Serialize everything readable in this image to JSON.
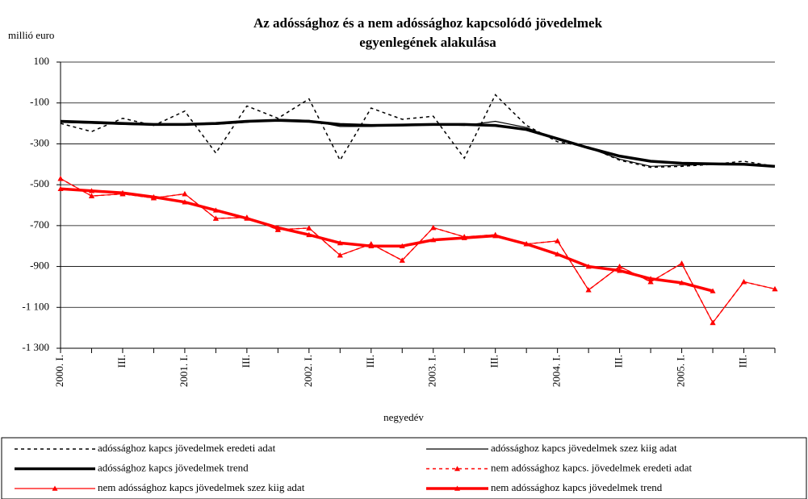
{
  "chart_data": {
    "type": "line",
    "title": [
      "Az adóssághoz  és a nem adóssághoz kapcsolódó jövedelmek",
      "egyenlegének alakulása"
    ],
    "y_label": "millió euro",
    "x_label": "negyedév",
    "categories": [
      "2000. I.",
      null,
      "III.",
      null,
      "2001. I.",
      null,
      "III.",
      null,
      "2002. I.",
      null,
      "III.",
      null,
      "2003. I.",
      null,
      "III.",
      null,
      "2004. I.",
      null,
      "III.",
      null,
      "2005. I.",
      null,
      "III.",
      null
    ],
    "ylim": [
      -1300,
      100
    ],
    "yticks": [
      100,
      -100,
      -300,
      -500,
      -700,
      -900,
      {
        "value": -1100,
        "label": "-1 100"
      },
      {
        "value": -1300,
        "label": "-1 300"
      }
    ],
    "grid": true,
    "legend": "bottom",
    "series": [
      {
        "name": "adóssághoz kapcs jövedelmek eredeti adat",
        "color": "#000000",
        "width": 1.5,
        "dash": true,
        "marker": false,
        "values": [
          -200,
          -240,
          -175,
          -210,
          -140,
          -345,
          -115,
          -175,
          -80,
          -380,
          -125,
          -180,
          -165,
          -370,
          -60,
          -210,
          -290,
          -315,
          -380,
          -415,
          -410,
          -400,
          -385,
          -410
        ]
      },
      {
        "name": "adóssághoz kapcs jövedelmek  szez kiig adat",
        "color": "#000000",
        "width": 1.2,
        "dash": false,
        "marker": false,
        "values": [
          -195,
          -200,
          -205,
          -208,
          -207,
          -205,
          -195,
          -180,
          -185,
          -215,
          -215,
          -205,
          -205,
          -210,
          -190,
          -220,
          -280,
          -320,
          -375,
          -410,
          -405,
          -400,
          -400,
          -410
        ]
      },
      {
        "name": "adóssághoz kapcs jövedelmek  trend",
        "color": "#000000",
        "width": 3.5,
        "dash": false,
        "marker": false,
        "values": [
          -190,
          -195,
          -200,
          -205,
          -205,
          -200,
          -190,
          -185,
          -190,
          -205,
          -210,
          -208,
          -205,
          -205,
          -210,
          -230,
          -275,
          -320,
          -360,
          -385,
          -395,
          -398,
          -400,
          -410
        ]
      },
      {
        "name": "nem adóssághoz kapcs. jövedelmek  eredeti adat",
        "color": "#ff0000",
        "width": 1.5,
        "dash": true,
        "marker": true,
        "values": [
          -470,
          -555,
          -545,
          -565,
          -545,
          -665,
          -660,
          -720,
          -712,
          -845,
          -790,
          -870,
          -710,
          -755,
          -745,
          -790,
          -775,
          -1015,
          -900,
          -975,
          -885,
          -1175,
          -975,
          -1010
        ]
      },
      {
        "name": "nem adóssághoz kapcs jövedelmek szez kiig adat",
        "color": "#ff0000",
        "width": 1.2,
        "dash": false,
        "marker": true,
        "values": [
          -470,
          -555,
          -545,
          -565,
          -545,
          -665,
          -660,
          -720,
          -712,
          -845,
          -790,
          -870,
          -710,
          -755,
          -745,
          -790,
          -775,
          -1015,
          -900,
          -975,
          -885,
          -1175,
          -975,
          -1010
        ]
      },
      {
        "name": "nem adóssághoz kapcs jövedelmek  trend",
        "color": "#ff0000",
        "width": 3.5,
        "dash": false,
        "marker": true,
        "values": [
          -520,
          -530,
          -540,
          -560,
          -585,
          -625,
          -665,
          -710,
          -745,
          -785,
          -800,
          -800,
          -770,
          -760,
          -750,
          -790,
          -840,
          -900,
          -920,
          -960,
          -980,
          -1020,
          null,
          null
        ]
      }
    ]
  }
}
